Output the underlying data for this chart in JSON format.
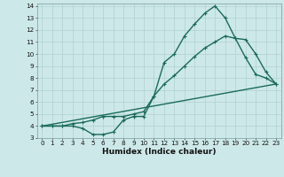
{
  "xlabel": "Humidex (Indice chaleur)",
  "bg_color": "#cde8e8",
  "grid_color": "#b0d0d0",
  "line_color": "#1a6b5a",
  "xlim": [
    -0.5,
    23.5
  ],
  "ylim": [
    3,
    14.2
  ],
  "xticks": [
    0,
    1,
    2,
    3,
    4,
    5,
    6,
    7,
    8,
    9,
    10,
    11,
    12,
    13,
    14,
    15,
    16,
    17,
    18,
    19,
    20,
    21,
    22,
    23
  ],
  "yticks": [
    3,
    4,
    5,
    6,
    7,
    8,
    9,
    10,
    11,
    12,
    13,
    14
  ],
  "line1_x": [
    0,
    1,
    2,
    3,
    4,
    5,
    6,
    7,
    8,
    9,
    10,
    11,
    12,
    13,
    14,
    15,
    16,
    17,
    18,
    19,
    20,
    21,
    22,
    23
  ],
  "line1_y": [
    4.0,
    4.0,
    4.0,
    4.0,
    3.8,
    3.3,
    3.3,
    3.5,
    4.5,
    4.8,
    4.8,
    6.5,
    9.3,
    10.0,
    11.5,
    12.5,
    13.4,
    14.0,
    13.0,
    11.3,
    9.7,
    8.3,
    8.0,
    7.5
  ],
  "line2_x": [
    0,
    1,
    2,
    3,
    4,
    5,
    6,
    7,
    8,
    9,
    10,
    11,
    12,
    13,
    14,
    15,
    16,
    17,
    18,
    19,
    20,
    21,
    22,
    23
  ],
  "line2_y": [
    4.0,
    4.0,
    4.0,
    4.2,
    4.3,
    4.5,
    4.8,
    4.8,
    4.8,
    5.0,
    5.2,
    6.5,
    7.5,
    8.2,
    9.0,
    9.8,
    10.5,
    11.0,
    11.5,
    11.3,
    11.2,
    10.0,
    8.5,
    7.5
  ],
  "line3_x": [
    0,
    23
  ],
  "line3_y": [
    4.0,
    7.5
  ],
  "linewidth": 1.0,
  "marker_size": 3.5,
  "tick_fontsize": 5.2,
  "xlabel_fontsize": 6.5
}
